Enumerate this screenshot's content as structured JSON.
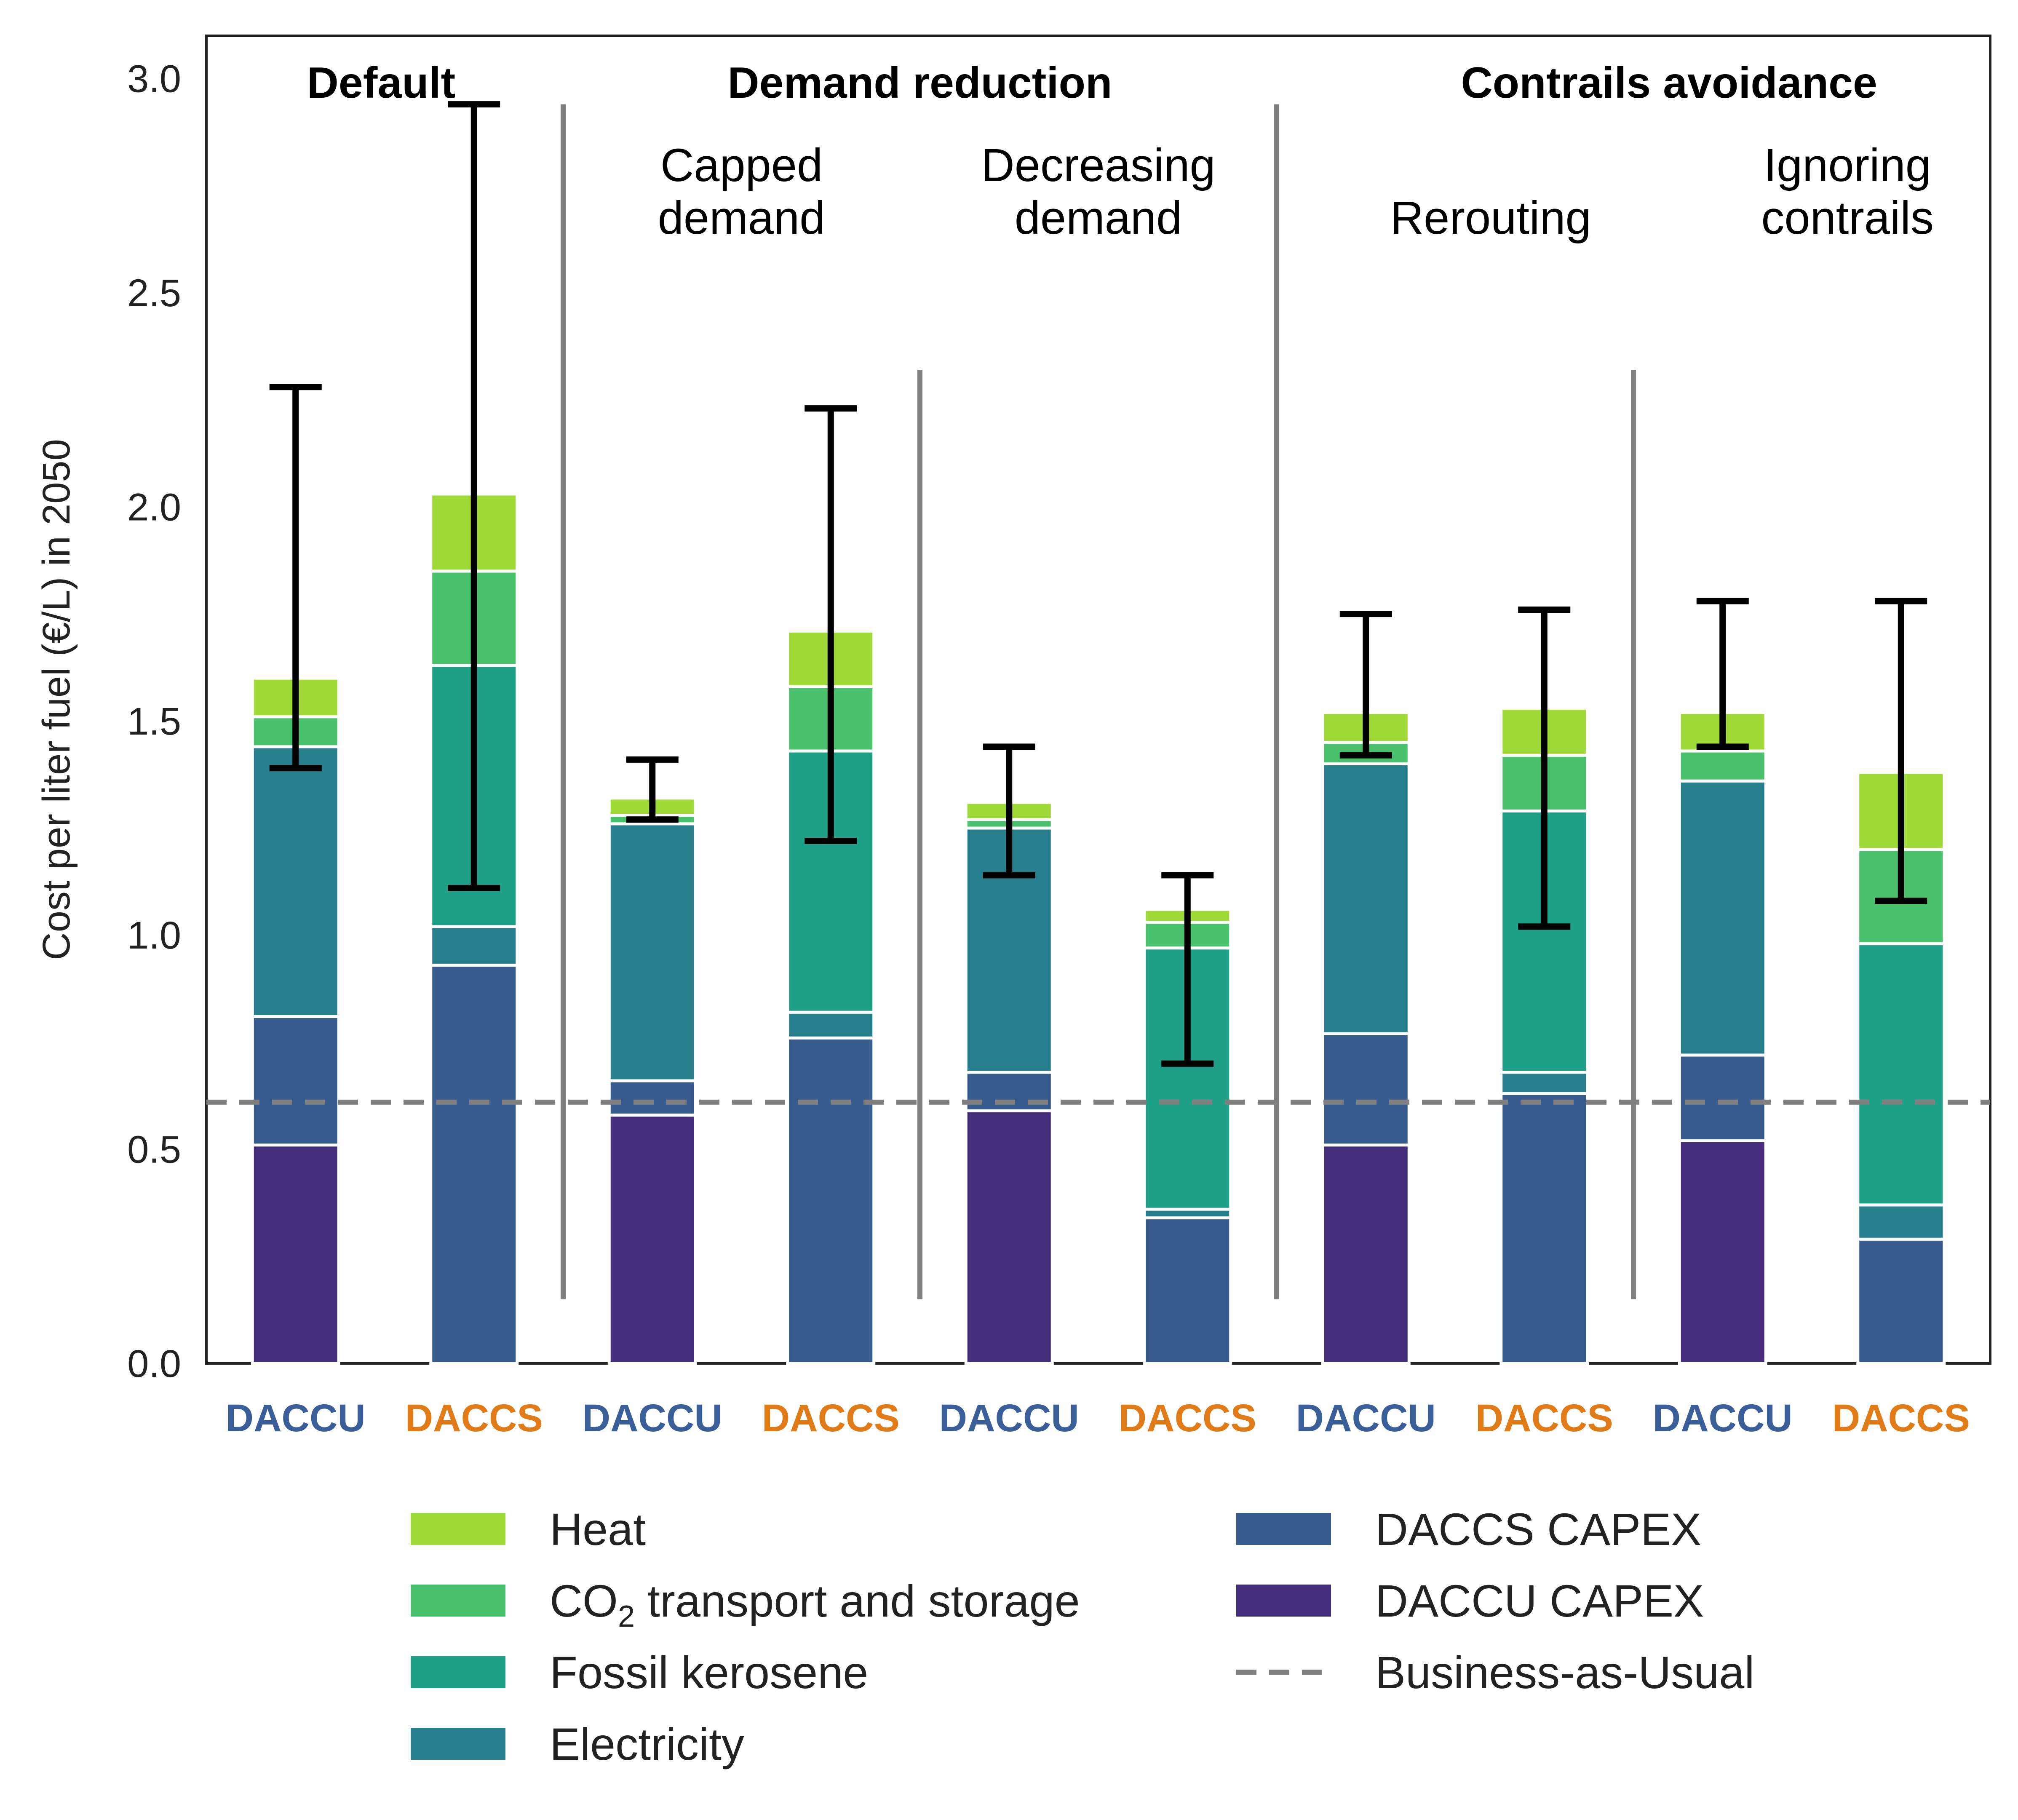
{
  "chart_data": {
    "type": "bar",
    "stacked": true,
    "ylabel": "Cost per liter fuel (€/L) in 2050",
    "xlabel": "",
    "ylim": [
      0,
      3.1
    ],
    "yticks": [
      "0.0",
      "0.5",
      "1.0",
      "1.5",
      "2.0",
      "2.5",
      "3.0"
    ],
    "grid": false,
    "categories": [
      "DACCU",
      "DACCS",
      "DACCU",
      "DACCS",
      "DACCU",
      "DACCS",
      "DACCU",
      "DACCS",
      "DACCU",
      "DACCS"
    ],
    "category_colors": [
      "#3a5f98",
      "#e07b17",
      "#3a5f98",
      "#e07b17",
      "#3a5f98",
      "#e07b17",
      "#3a5f98",
      "#e07b17",
      "#3a5f98",
      "#e07b17"
    ],
    "groups": [
      {
        "label": "Default",
        "sublabels": []
      },
      {
        "label": "Demand reduction",
        "sublabels": [
          [
            "Capped",
            "demand"
          ],
          [
            "Decreasing",
            "demand"
          ]
        ]
      },
      {
        "label": "Contrails avoidance",
        "sublabels": [
          [
            "Rerouting"
          ],
          [
            "Ignoring",
            "contrails"
          ]
        ]
      }
    ],
    "series": [
      {
        "name": "DACCU CAPEX",
        "color": "#472f7d",
        "values": [
          0.51,
          0,
          0.58,
          0,
          0.59,
          0,
          0.51,
          0,
          0.52,
          0
        ]
      },
      {
        "name": "DACCS CAPEX",
        "color": "#375b8d",
        "values": [
          0.3,
          0.93,
          0.08,
          0.76,
          0.09,
          0.34,
          0.26,
          0.63,
          0.2,
          0.29
        ]
      },
      {
        "name": "Electricity",
        "color": "#277f8e",
        "values": [
          0.63,
          0.09,
          0.6,
          0.06,
          0.57,
          0.02,
          0.63,
          0.05,
          0.64,
          0.08
        ]
      },
      {
        "name": "Fossil kerosene",
        "color": "#1fa187",
        "values": [
          0,
          0.61,
          0,
          0.61,
          0,
          0.61,
          0,
          0.61,
          0,
          0.61
        ]
      },
      {
        "name": "CO2 transport and storage",
        "color": "#4ac16d",
        "values": [
          0.07,
          0.22,
          0.02,
          0.15,
          0.02,
          0.06,
          0.05,
          0.13,
          0.07,
          0.22
        ]
      },
      {
        "name": "Heat",
        "color": "#a0da39",
        "values": [
          0.09,
          0.18,
          0.04,
          0.13,
          0.04,
          0.03,
          0.07,
          0.11,
          0.09,
          0.18
        ]
      }
    ],
    "error_bars": [
      {
        "low": 1.39,
        "high": 2.28
      },
      {
        "low": 1.11,
        "high": 2.94
      },
      {
        "low": 1.27,
        "high": 1.41
      },
      {
        "low": 1.22,
        "high": 2.23
      },
      {
        "low": 1.14,
        "high": 1.44
      },
      {
        "low": 0.7,
        "high": 1.14
      },
      {
        "low": 1.42,
        "high": 1.75
      },
      {
        "low": 1.02,
        "high": 1.76
      },
      {
        "low": 1.44,
        "high": 1.78
      },
      {
        "low": 1.08,
        "high": 1.78
      }
    ],
    "reference_line": {
      "name": "Business-as-Usual",
      "value": 0.61,
      "color": "#808080",
      "style": "dashed"
    },
    "legend": {
      "placement": "bottom",
      "columns": [
        [
          {
            "label": "Heat",
            "series_index": 5
          },
          {
            "label": "CO",
            "sub": "2",
            "suffix": " transport and storage",
            "series_index": 4
          },
          {
            "label": "Fossil kerosene",
            "series_index": 3
          },
          {
            "label": "Electricity",
            "series_index": 2
          }
        ],
        [
          {
            "label": "DACCS CAPEX",
            "series_index": 1
          },
          {
            "label": "DACCU CAPEX",
            "series_index": 0
          },
          {
            "label": "Business-as-Usual",
            "line": true
          }
        ]
      ]
    }
  }
}
